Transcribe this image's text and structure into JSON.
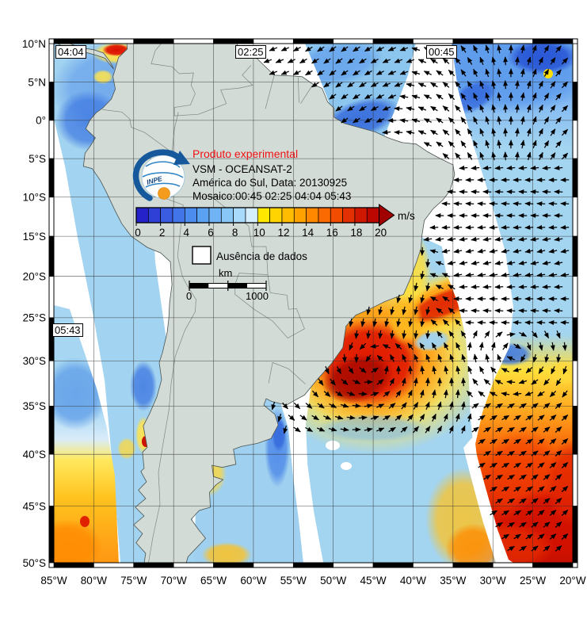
{
  "map": {
    "pass_labels": [
      {
        "text": "04:04"
      },
      {
        "text": "02:25"
      },
      {
        "text": "00:45"
      },
      {
        "text": "05:43"
      }
    ],
    "axes": {
      "lat_labels": [
        "10°N",
        "5°N",
        "0°",
        "5°S",
        "10°S",
        "15°S",
        "20°S",
        "25°S",
        "30°S",
        "35°S",
        "40°S",
        "45°S",
        "50°S"
      ],
      "lon_labels": [
        "85°W",
        "80°W",
        "75°W",
        "70°W",
        "65°W",
        "60°W",
        "55°W",
        "50°W",
        "45°W",
        "40°W",
        "35°W",
        "30°W",
        "25°W",
        "20°W"
      ]
    },
    "land_color": "#d3dbd7",
    "no_data_color": "#ffffff",
    "grid_color": "#2f2f2f",
    "arrow_color": "#000000",
    "border_color": "#4a5450",
    "country_border_color": "#7d8884"
  },
  "title_block": {
    "line1": "Produto experimental",
    "line1_color": "#ee1111",
    "line2": "VSM - OCEANSAT-2",
    "line3": "América do Sul, Data: 20130925",
    "line4": "Mosaico:00:45 02:25 04:04 05:43"
  },
  "colorbar": {
    "unit": "m/s",
    "tick_labels": [
      "0",
      "2",
      "4",
      "6",
      "8",
      "10",
      "12",
      "14",
      "16",
      "18",
      "20"
    ],
    "palette": [
      "#2422c8",
      "#2e40d6",
      "#3a5ce0",
      "#4276e8",
      "#4c8cee",
      "#5ca2f2",
      "#70b4f6",
      "#88c6f8",
      "#a8dafb",
      "#d5eefd",
      "#ffe800",
      "#ffd400",
      "#ffbc00",
      "#ffa200",
      "#ff8800",
      "#fb6a00",
      "#f14c00",
      "#e23000",
      "#d01800",
      "#bc0600"
    ],
    "arrowhead_color": "#a00000"
  },
  "legend": {
    "no_data_label": "Ausência de dados"
  },
  "scale_bar": {
    "unit_label": "km",
    "start_label": "0",
    "end_label": "1000"
  },
  "logo": {
    "text": "INPE"
  },
  "chart_data": {
    "type": "map",
    "product": "VSM - OCEANSAT-2",
    "variable": "ocean surface wind vectors",
    "unit": "m/s",
    "scale_min": 0,
    "scale_max": 20,
    "date": "20130925",
    "region": "América do Sul",
    "mosaic_times": [
      "00:45",
      "02:25",
      "04:04",
      "05:43"
    ],
    "lon_range_deg_w": [
      85,
      20
    ],
    "lat_range": [
      "10N",
      "50S"
    ]
  }
}
